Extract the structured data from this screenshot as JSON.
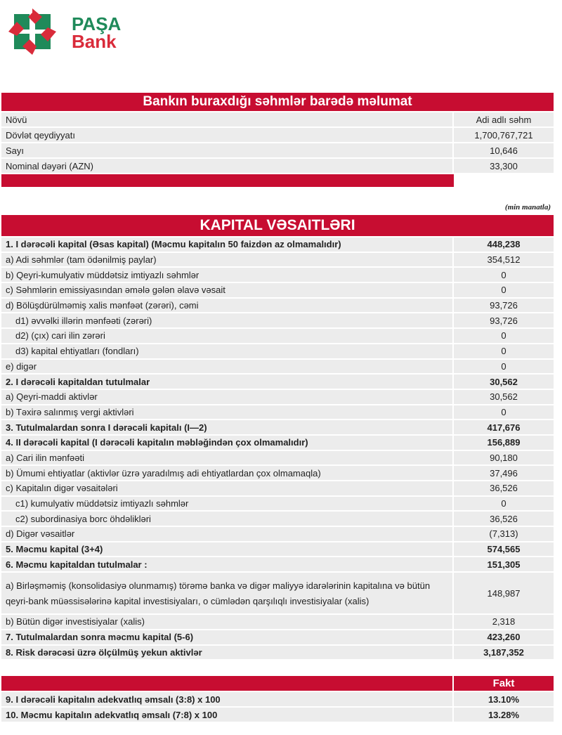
{
  "brand": {
    "line1": "PAŞA",
    "line2": "Bank",
    "green": "#1f8a5a",
    "red": "#d92b3a"
  },
  "colors": {
    "header_red": "#c70d31",
    "row_gray": "#ececec"
  },
  "shares": {
    "title": "Bankın buraxdığı səhmlər barədə məlumat",
    "rows": [
      {
        "label": "Növü",
        "value": "Adi adlı səhm"
      },
      {
        "label": "Dövlət qeydiyyatı",
        "value": "1,700,767,721"
      },
      {
        "label": "Sayı",
        "value": "10,646"
      },
      {
        "label": "Nominal dəyəri (AZN)",
        "value": "33,300"
      }
    ]
  },
  "unit_note": "(min manatla)",
  "capital": {
    "title": "KAPITAL VƏSAITLƏRI",
    "rows": [
      {
        "label": "1. I dərəcəli kapital (Əsas kapital) (Məcmu kapitalın 50 faizdən  az olmamalıdır)",
        "value": "448,238",
        "bold": true
      },
      {
        "label": "a) Adi səhmlər (tam ödənilmiş paylar)",
        "value": "354,512"
      },
      {
        "label": "b) Qeyri-kumulyativ müddətsiz imtiyazlı səhmlər",
        "value": "0"
      },
      {
        "label": "c) Səhmlərin emissiyasından əmələ gələn  əlavə vəsait",
        "value": "0"
      },
      {
        "label": "d)   Bölüşdürülməmiş xalis mənfəət (zərəri), cəmi",
        "value": "93,726"
      },
      {
        "label": "d1) əvvəlki illərin mənfəəti (zərəri)",
        "value": "93,726",
        "indent": true
      },
      {
        "label": "d2) (çıx) cari ilin zərəri",
        "value": "0",
        "indent": true
      },
      {
        "label": "d3) kapital ehtiyatları (fondları)",
        "value": "0",
        "indent": true
      },
      {
        "label": "e) digər",
        "value": "0"
      },
      {
        "label": "2. I dərəcəli kapitaldan  tutulmalar",
        "value": "30,562",
        "bold": true
      },
      {
        "label": "a) Qeyri-maddi aktivlər",
        "value": "30,562"
      },
      {
        "label": "b) Təxirə salınmış vergi aktivləri",
        "value": "0"
      },
      {
        "label": "3. Tutulmalardan  sonra I dərəcəli kapitalı (I—2)",
        "value": "417,676",
        "bold": true
      },
      {
        "label": "4. II dərəcəli  kapital (I dərəcəli  kapitalın  məbləğindən çox olmamalıdır)",
        "value": "156,889",
        "bold": true
      },
      {
        "label": "a) Cari ilin mənfəəti",
        "value": "90,180"
      },
      {
        "label": "b) Ümumi ehtiyatlar (aktivlər üzrə yaradılmış adi ehtiyatlardan çox olmamaqla)",
        "value": "37,496"
      },
      {
        "label": "c) Kapitalın digər vəsaitələri",
        "value": "36,526"
      },
      {
        "label": "c1) kumulyativ müddətsiz imtiyazlı səhmlər",
        "value": "0",
        "indent": true
      },
      {
        "label": "c2) subordinasiya borc öhdəlikləri",
        "value": "36,526",
        "indent": true
      },
      {
        "label": "d) Digər vəsaitlər",
        "value": "(7,313)"
      },
      {
        "label": "5. Məcmu kapital (3+4)",
        "value": "574,565",
        "bold": true
      },
      {
        "label": "6. Məcmu kapitaldan tutulmalar :",
        "value": "151,305",
        "bold": true
      },
      {
        "label": "a) Birləşməmiş (konsolidasiyə olunmamış) törəmə banka və digər maliyyə idarələrinin kapitalına və bütün qeyri-bank müəssisələrinə kapital investisiyaları, o cümlədən qarşılıqlı investisiyalar (xalis)",
        "value": "148,987",
        "tall": true
      },
      {
        "label": "b) Bütün digər investisiyalar (xalis)",
        "value": "2,318"
      },
      {
        "label": "7. Tutulmalardan  sonra məcmu kapital (5-6)",
        "value": "423,260",
        "bold": true
      },
      {
        "label": "8. Risk dərəcəsi üzrə ölçülmüş  yekun aktivlər",
        "value": "3,187,352",
        "bold": true
      }
    ]
  },
  "adequacy": {
    "header": "Fakt",
    "rows": [
      {
        "label": "9. I dərəcəli  kapitalın  adekvatlıq əmsalı (3:8) x 100",
        "value": "13.10%",
        "bold": true
      },
      {
        "label": "10. Məcmu kapitalın  adekvatlıq  əmsalı (7:8) x 100",
        "value": "13.28%",
        "bold": true
      }
    ]
  }
}
